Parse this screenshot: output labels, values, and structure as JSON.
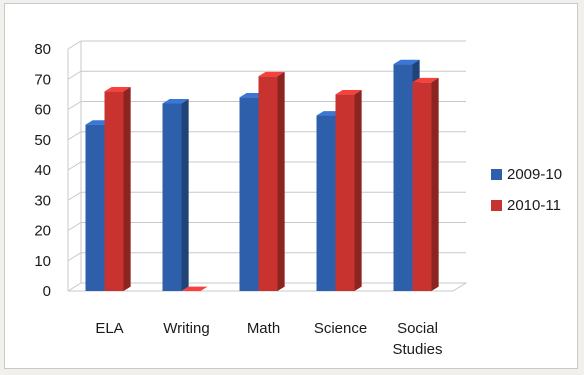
{
  "chart_data": {
    "type": "bar",
    "categories": [
      "ELA",
      "Writing",
      "Math",
      "Science",
      "Social Studies"
    ],
    "category_lines": [
      [
        "ELA"
      ],
      [
        "Writing"
      ],
      [
        "Math"
      ],
      [
        "Science"
      ],
      [
        "Social",
        "Studies"
      ]
    ],
    "series": [
      {
        "name": "2009-10",
        "values": [
          55,
          62,
          64,
          58,
          75
        ],
        "color": "#2e5fab"
      },
      {
        "name": "2010-11",
        "values": [
          66,
          0,
          71,
          65,
          69
        ],
        "color": "#c8332f"
      }
    ],
    "y_ticks": [
      "0",
      "10",
      "20",
      "30",
      "40",
      "50",
      "60",
      "70",
      "80"
    ],
    "ylim": [
      0,
      80
    ],
    "grid": true,
    "style": "3d-clustered-column",
    "legend_position": "right"
  }
}
